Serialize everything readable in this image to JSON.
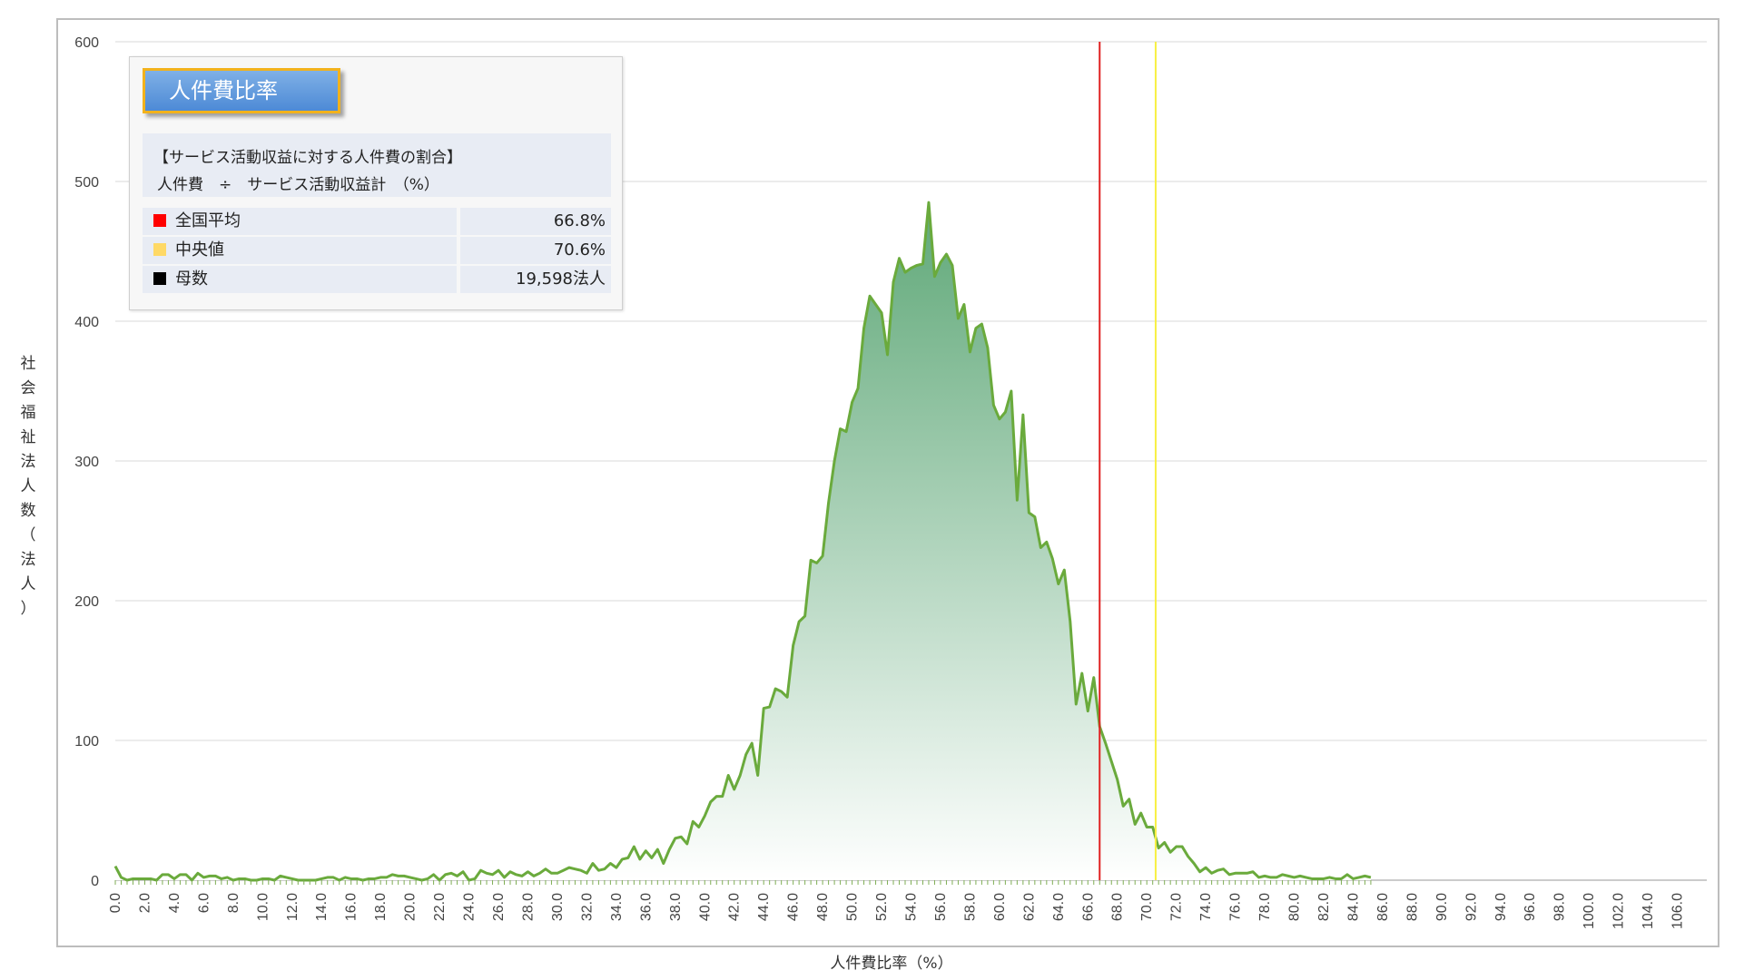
{
  "chart_data": {
    "type": "area",
    "title": "人件費比率",
    "xlabel": "人件費比率（%）",
    "ylabel": "社会福祉法人数（法人）",
    "ylim": [
      0,
      600
    ],
    "yticks": [
      0,
      100,
      200,
      300,
      400,
      500,
      600
    ],
    "xlim": [
      0,
      108
    ],
    "xtick_labels": [
      "0.0",
      "2.0",
      "4.0",
      "6.0",
      "8.0",
      "10.0",
      "12.0",
      "14.0",
      "16.0",
      "18.0",
      "20.0",
      "22.0",
      "24.0",
      "26.0",
      "28.0",
      "30.0",
      "32.0",
      "34.0",
      "36.0",
      "38.0",
      "40.0",
      "42.0",
      "44.0",
      "46.0",
      "48.0",
      "50.0",
      "52.0",
      "54.0",
      "56.0",
      "58.0",
      "60.0",
      "62.0",
      "64.0",
      "66.0",
      "68.0",
      "70.0",
      "72.0",
      "74.0",
      "76.0",
      "78.0",
      "80.0",
      "82.0",
      "84.0",
      "86.0",
      "88.0",
      "90.0",
      "92.0",
      "94.0",
      "96.0",
      "98.0",
      "100.0",
      "102.0",
      "104.0",
      "106.0"
    ],
    "x_step": 0.4,
    "values": [
      10,
      2,
      0,
      1,
      1,
      1,
      1,
      0,
      4,
      4,
      1,
      4,
      4,
      0,
      5,
      2,
      3,
      3,
      1,
      2,
      0,
      1,
      1,
      0,
      0,
      1,
      1,
      0,
      3,
      2,
      1,
      0,
      0,
      0,
      0,
      1,
      2,
      2,
      0,
      2,
      1,
      1,
      0,
      1,
      1,
      2,
      2,
      4,
      3,
      3,
      2,
      1,
      0,
      1,
      4,
      0,
      4,
      5,
      3,
      6,
      0,
      1,
      7,
      5,
      4,
      7,
      2,
      6,
      4,
      3,
      6,
      3,
      5,
      8,
      5,
      5,
      7,
      9,
      8,
      7,
      5,
      12,
      7,
      8,
      12,
      9,
      15,
      16,
      24,
      15,
      21,
      16,
      22,
      12,
      22,
      30,
      31,
      26,
      42,
      38,
      46,
      56,
      60,
      60,
      75,
      65,
      75,
      90,
      98,
      75,
      123,
      124,
      137,
      135,
      131,
      168,
      185,
      189,
      229,
      227,
      232,
      270,
      300,
      323,
      321,
      342,
      352,
      395,
      418,
      412,
      406,
      376,
      428,
      445,
      435,
      438,
      440,
      441,
      485,
      432,
      442,
      448,
      440,
      402,
      412,
      378,
      395,
      398,
      381,
      340,
      330,
      335,
      350,
      272,
      333,
      263,
      260,
      238,
      242,
      230,
      212,
      222,
      185,
      126,
      148,
      121,
      145,
      110,
      98,
      85,
      72,
      53,
      58,
      40,
      48,
      38,
      38,
      23,
      27,
      20,
      24,
      24,
      17,
      12,
      6,
      9,
      5,
      7,
      8,
      4,
      5,
      5,
      5,
      6,
      2,
      3,
      2,
      2,
      4,
      3,
      2,
      3,
      2,
      1,
      1,
      1,
      2,
      1,
      1,
      4,
      1,
      2,
      3,
      2
    ],
    "reference_lines": [
      {
        "name": "全国平均",
        "value": 66.8,
        "color": "#e02020"
      },
      {
        "name": "中央値",
        "value": 70.6,
        "color": "#f7f043"
      }
    ],
    "series_color": "#6aaa3c",
    "fill_top_color": "#5fa878",
    "fill_bottom_color": "#ffffff",
    "grid": true
  },
  "info_box": {
    "title": "人件費比率",
    "formula_line1": "【サービス活動収益に対する人件費の割合】",
    "formula_line2": "人件費　÷　サービス活動収益計　（%）",
    "stats": [
      {
        "label": "全国平均",
        "value": "66.8%",
        "color": "#ff0000"
      },
      {
        "label": "中央値",
        "value": "70.6%",
        "color": "#ffd966"
      },
      {
        "label": "母数",
        "value": "19,598法人",
        "color": "#000000"
      }
    ]
  }
}
